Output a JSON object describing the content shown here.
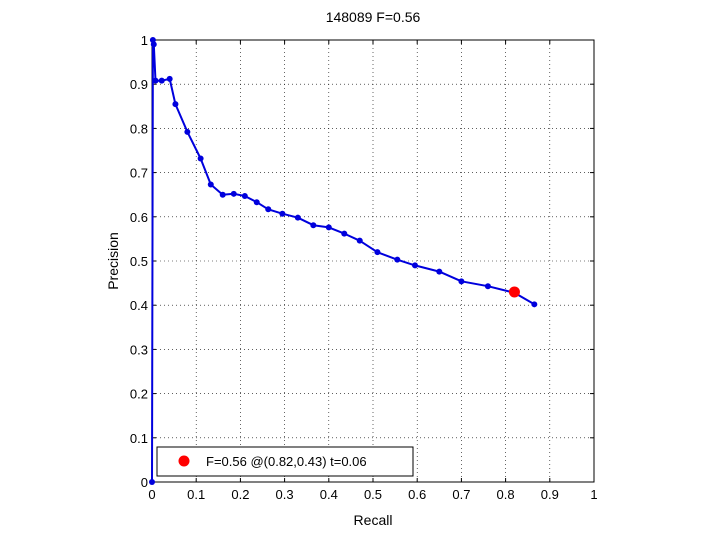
{
  "chart_data": {
    "type": "line",
    "title": "148089 F=0.56",
    "xlabel": "Recall",
    "ylabel": "Precision",
    "xlim": [
      0,
      1
    ],
    "ylim": [
      0,
      1
    ],
    "grid": true,
    "xticks": [
      "0",
      "0.1",
      "0.2",
      "0.3",
      "0.4",
      "0.5",
      "0.6",
      "0.7",
      "0.8",
      "0.9",
      "1"
    ],
    "yticks": [
      "0",
      "0.1",
      "0.2",
      "0.3",
      "0.4",
      "0.5",
      "0.6",
      "0.7",
      "0.8",
      "0.9",
      "1"
    ],
    "series": [
      {
        "color": "#0000dd",
        "points": [
          [
            0.0,
            0.0
          ],
          [
            0.002,
            1.0
          ],
          [
            0.004,
            0.99
          ],
          [
            0.008,
            0.908
          ],
          [
            0.022,
            0.908
          ],
          [
            0.04,
            0.912
          ],
          [
            0.053,
            0.855
          ],
          [
            0.08,
            0.792
          ],
          [
            0.11,
            0.732
          ],
          [
            0.133,
            0.673
          ],
          [
            0.16,
            0.65
          ],
          [
            0.185,
            0.652
          ],
          [
            0.21,
            0.647
          ],
          [
            0.237,
            0.633
          ],
          [
            0.263,
            0.617
          ],
          [
            0.295,
            0.607
          ],
          [
            0.33,
            0.598
          ],
          [
            0.365,
            0.581
          ],
          [
            0.4,
            0.576
          ],
          [
            0.435,
            0.562
          ],
          [
            0.47,
            0.546
          ],
          [
            0.51,
            0.52
          ],
          [
            0.555,
            0.503
          ],
          [
            0.595,
            0.49
          ],
          [
            0.65,
            0.476
          ],
          [
            0.7,
            0.454
          ],
          [
            0.76,
            0.443
          ],
          [
            0.82,
            0.428
          ],
          [
            0.865,
            0.402
          ]
        ]
      }
    ],
    "highlight": {
      "x": 0.82,
      "y": 0.43,
      "color": "#ff0000"
    },
    "legend": {
      "label": "F=0.56 @(0.82,0.43) t=0.06",
      "position": "bottom-left"
    }
  }
}
